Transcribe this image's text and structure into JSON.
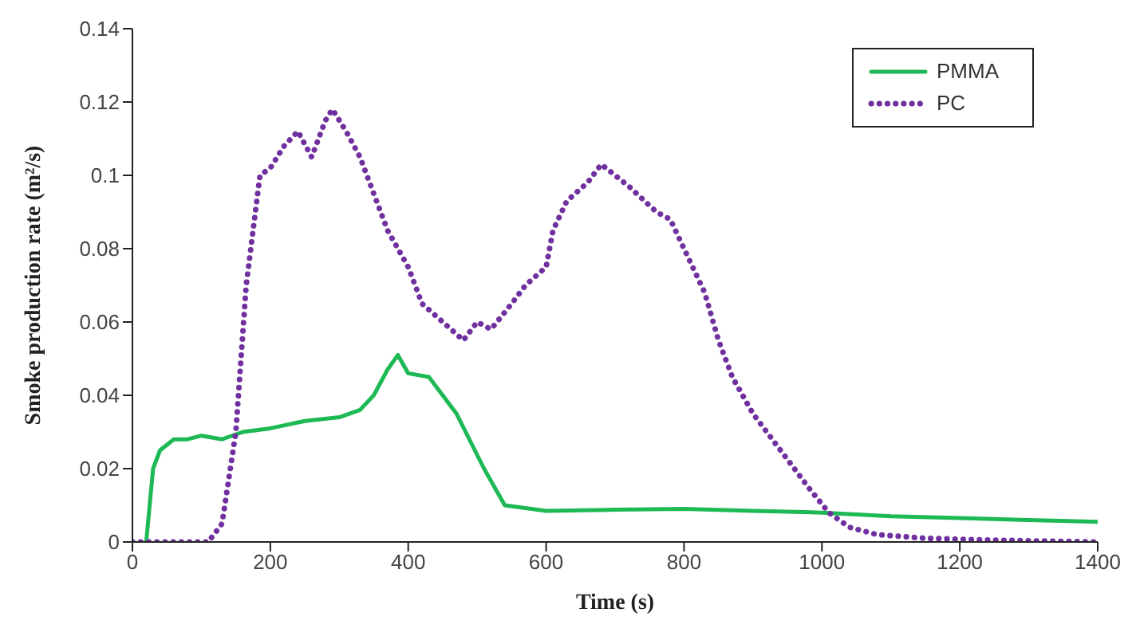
{
  "chart_data": {
    "type": "line",
    "xlabel": "Time (s)",
    "ylabel": "Smoke production rate (m²/s)",
    "xlim": [
      0,
      1400
    ],
    "xticks": [
      0,
      200,
      400,
      600,
      800,
      1000,
      1200,
      1400
    ],
    "ylim": [
      0,
      0.14
    ],
    "yticks": [
      0,
      0.02,
      0.04,
      0.06,
      0.08,
      {
        "value": 0.1,
        "label": "0.1"
      },
      0.12,
      0.14
    ],
    "legend": "top right",
    "marker": "none",
    "series": [
      {
        "name": "PMMA",
        "color": "#1db954",
        "line_style": "solid",
        "x": [
          20,
          30,
          40,
          60,
          80,
          100,
          130,
          160,
          200,
          250,
          300,
          330,
          350,
          370,
          385,
          400,
          430,
          470,
          510,
          540,
          600,
          700,
          800,
          900,
          1000,
          1100,
          1200,
          1300,
          1400
        ],
        "values": [
          0,
          0.02,
          0.025,
          0.028,
          0.028,
          0.029,
          0.028,
          0.03,
          0.031,
          0.033,
          0.034,
          0.036,
          0.04,
          0.047,
          0.051,
          0.046,
          0.045,
          0.035,
          0.02,
          0.01,
          0.0085,
          0.0088,
          0.009,
          0.0085,
          0.008,
          0.007,
          0.0065,
          0.006,
          0.0055
        ]
      },
      {
        "name": "PC",
        "color": "#7030a0",
        "line_style": "dotted",
        "x": [
          0,
          110,
          130,
          150,
          165,
          185,
          200,
          220,
          240,
          260,
          280,
          290,
          310,
          330,
          350,
          370,
          400,
          420,
          450,
          480,
          500,
          520,
          550,
          570,
          600,
          610,
          630,
          660,
          680,
          700,
          720,
          760,
          780,
          800,
          830,
          850,
          870,
          900,
          940,
          980,
          1010,
          1040,
          1080,
          1150,
          1250,
          1400
        ],
        "values": [
          0,
          0,
          0.005,
          0.03,
          0.07,
          0.1,
          0.102,
          0.108,
          0.112,
          0.105,
          0.115,
          0.118,
          0.112,
          0.105,
          0.095,
          0.085,
          0.075,
          0.065,
          0.06,
          0.055,
          0.06,
          0.058,
          0.065,
          0.07,
          0.075,
          0.085,
          0.093,
          0.098,
          0.103,
          0.1,
          0.097,
          0.09,
          0.088,
          0.08,
          0.068,
          0.055,
          0.045,
          0.035,
          0.025,
          0.015,
          0.008,
          0.004,
          0.002,
          0.001,
          0.0005,
          0
        ]
      }
    ]
  }
}
